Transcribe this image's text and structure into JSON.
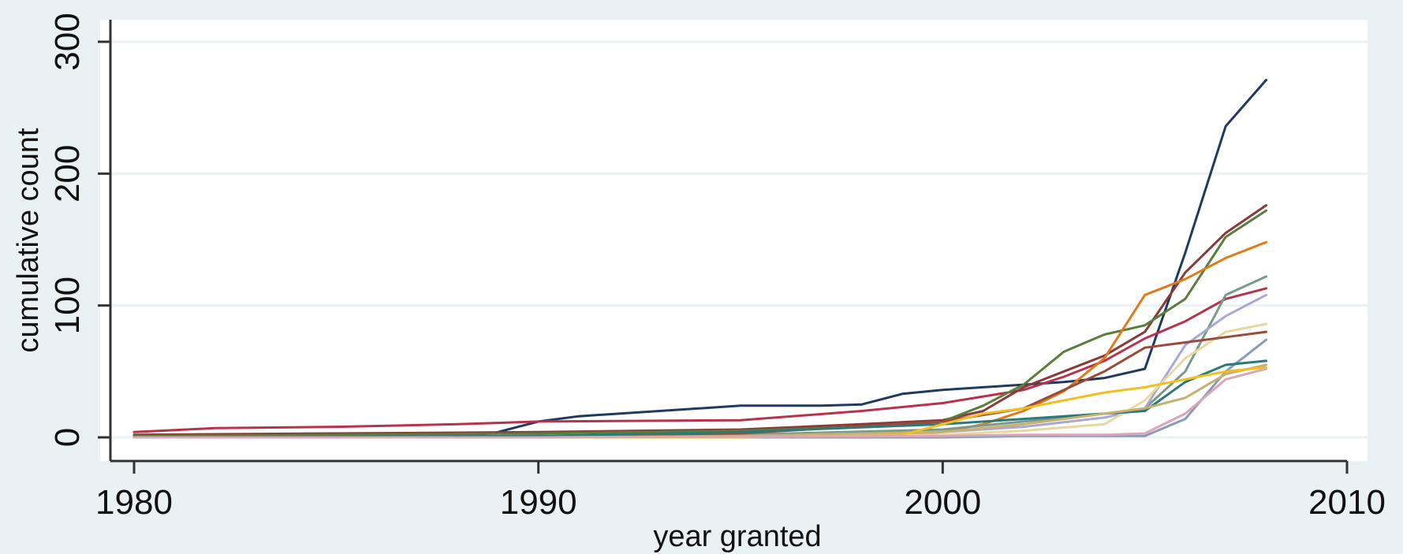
{
  "chart_data": {
    "type": "line",
    "title": "",
    "xlabel": "year granted",
    "ylabel": "cumulative count",
    "xlim": [
      1979.5,
      2010.5
    ],
    "ylim": [
      -18,
      318
    ],
    "xticks": [
      1980,
      1990,
      2000,
      2010
    ],
    "yticks": [
      0,
      100,
      200,
      300
    ],
    "grid": "horizontal",
    "legend": "none",
    "series": [
      {
        "color": "#1f3a5f",
        "x": [
          1980,
          1982,
          1985,
          1988,
          1989,
          1990,
          1991,
          1993,
          1995,
          1997,
          1998,
          1999,
          2000,
          2001,
          2002,
          2003,
          2004,
          2005,
          2006,
          2007,
          2008
        ],
        "y": [
          0,
          0,
          0,
          0,
          4,
          12,
          16,
          20,
          24,
          24,
          25,
          33,
          36,
          38,
          40,
          42,
          45,
          52,
          140,
          236,
          271
        ]
      },
      {
        "color": "#b8324c",
        "x": [
          1980,
          1982,
          1985,
          1988,
          1990,
          1995,
          1998,
          2000,
          2002,
          2003,
          2004,
          2005,
          2006,
          2007,
          2008
        ],
        "y": [
          4,
          7,
          8,
          10,
          12,
          13,
          20,
          26,
          36,
          46,
          58,
          75,
          88,
          105,
          113
        ]
      },
      {
        "color": "#8b3a3a",
        "x": [
          1980,
          1985,
          1990,
          1995,
          1998,
          2000,
          2001,
          2002,
          2003,
          2004,
          2005,
          2006,
          2007,
          2008
        ],
        "y": [
          2,
          3,
          4,
          6,
          10,
          13,
          20,
          38,
          50,
          62,
          80,
          125,
          155,
          176
        ]
      },
      {
        "color": "#5a7d3a",
        "x": [
          1980,
          1985,
          1990,
          1995,
          1998,
          2000,
          2001,
          2002,
          2003,
          2004,
          2005,
          2006,
          2007,
          2008
        ],
        "y": [
          1,
          2,
          3,
          5,
          8,
          12,
          24,
          40,
          65,
          78,
          85,
          105,
          152,
          172
        ]
      },
      {
        "color": "#e07b1a",
        "x": [
          1980,
          1990,
          1995,
          1999,
          2000,
          2001,
          2002,
          2003,
          2004,
          2005,
          2006,
          2007,
          2008
        ],
        "y": [
          0,
          0,
          1,
          2,
          4,
          10,
          20,
          35,
          60,
          108,
          120,
          136,
          148
        ]
      },
      {
        "color": "#7a9a8a",
        "x": [
          1980,
          1990,
          1995,
          2000,
          2002,
          2004,
          2005,
          2006,
          2007,
          2008
        ],
        "y": [
          0,
          1,
          2,
          6,
          12,
          18,
          22,
          50,
          108,
          122
        ]
      },
      {
        "color": "#a8a8d8",
        "x": [
          1980,
          1990,
          1995,
          2000,
          2002,
          2004,
          2005,
          2006,
          2007,
          2008
        ],
        "y": [
          0,
          0,
          1,
          4,
          8,
          15,
          22,
          70,
          92,
          108
        ]
      },
      {
        "color": "#e8d8a0",
        "x": [
          1980,
          1990,
          1995,
          2000,
          2002,
          2004,
          2005,
          2006,
          2007,
          2008
        ],
        "y": [
          0,
          0,
          0,
          2,
          5,
          10,
          28,
          60,
          80,
          86
        ]
      },
      {
        "color": "#9a4a3a",
        "x": [
          1980,
          1990,
          1995,
          2000,
          2002,
          2004,
          2005,
          2006,
          2007,
          2008
        ],
        "y": [
          0,
          1,
          3,
          12,
          22,
          50,
          68,
          72,
          76,
          80
        ]
      },
      {
        "color": "#8a9ab8",
        "x": [
          1980,
          1990,
          2000,
          2002,
          2004,
          2005,
          2006,
          2007,
          2008
        ],
        "y": [
          0,
          0,
          0,
          1,
          1,
          1,
          14,
          50,
          74
        ]
      },
      {
        "color": "#2a7a7a",
        "x": [
          1980,
          1990,
          1995,
          2000,
          2002,
          2004,
          2005,
          2006,
          2007,
          2008
        ],
        "y": [
          0,
          1,
          4,
          10,
          14,
          18,
          20,
          42,
          55,
          58
        ]
      },
      {
        "color": "#c8b070",
        "x": [
          1980,
          1990,
          1995,
          2000,
          2002,
          2004,
          2005,
          2006,
          2007,
          2008
        ],
        "y": [
          0,
          0,
          1,
          4,
          10,
          18,
          22,
          30,
          48,
          55
        ]
      },
      {
        "color": "#f0c020",
        "x": [
          1980,
          1990,
          1995,
          1999,
          2000,
          2001,
          2002,
          2003,
          2004,
          2005,
          2006,
          2007,
          2008
        ],
        "y": [
          0,
          0,
          0,
          2,
          10,
          18,
          22,
          28,
          34,
          38,
          44,
          50,
          53
        ]
      },
      {
        "color": "#d8a8b8",
        "x": [
          1980,
          1990,
          2000,
          2002,
          2004,
          2005,
          2006,
          2007,
          2008
        ],
        "y": [
          0,
          0,
          1,
          2,
          2,
          3,
          18,
          44,
          52
        ]
      }
    ]
  }
}
